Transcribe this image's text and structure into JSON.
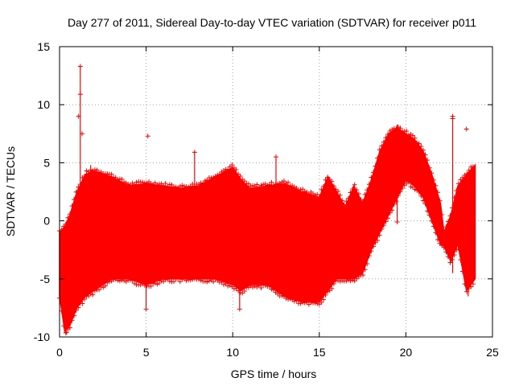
{
  "chart_data": {
    "type": "scatter",
    "title": "Day 277 of 2011, Sidereal Day-to-day VTEC variation (SDTVAR) for receiver p011",
    "xlabel": "GPS time / hours",
    "ylabel": "SDTVAR / TECUs",
    "xlim": [
      0,
      25
    ],
    "ylim": [
      -10,
      15
    ],
    "xticks": [
      0,
      5,
      10,
      15,
      20,
      25
    ],
    "yticks": [
      -10,
      -5,
      0,
      5,
      10,
      15
    ],
    "xtick_labels": [
      "0",
      "5",
      "10",
      "15",
      "20",
      "25"
    ],
    "ytick_labels": [
      "-10",
      "-5",
      "0",
      "5",
      "10",
      "15"
    ],
    "grid": true,
    "marker": "+",
    "series_color": "#ff0000",
    "envelope": [
      {
        "x": 0.0,
        "low": -6.5,
        "high": -1.0
      },
      {
        "x": 0.3,
        "low": -9.5,
        "high": -0.5
      },
      {
        "x": 0.6,
        "low": -9.0,
        "high": 0.5
      },
      {
        "x": 1.0,
        "low": -7.5,
        "high": 2.5
      },
      {
        "x": 1.5,
        "low": -6.5,
        "high": 4.0
      },
      {
        "x": 2.0,
        "low": -6.0,
        "high": 4.3
      },
      {
        "x": 3.0,
        "low": -5.0,
        "high": 3.8
      },
      {
        "x": 4.0,
        "low": -5.0,
        "high": 3.0
      },
      {
        "x": 5.0,
        "low": -5.5,
        "high": 3.2
      },
      {
        "x": 6.0,
        "low": -5.0,
        "high": 3.0
      },
      {
        "x": 7.0,
        "low": -5.0,
        "high": 2.8
      },
      {
        "x": 8.0,
        "low": -5.0,
        "high": 3.0
      },
      {
        "x": 9.0,
        "low": -5.0,
        "high": 3.8
      },
      {
        "x": 10.0,
        "low": -5.5,
        "high": 4.6
      },
      {
        "x": 10.5,
        "low": -6.0,
        "high": 3.5
      },
      {
        "x": 11.0,
        "low": -5.5,
        "high": 2.8
      },
      {
        "x": 12.0,
        "low": -5.5,
        "high": 3.0
      },
      {
        "x": 13.0,
        "low": -6.5,
        "high": 3.2
      },
      {
        "x": 14.0,
        "low": -7.0,
        "high": 2.5
      },
      {
        "x": 15.0,
        "low": -7.0,
        "high": 2.0
      },
      {
        "x": 15.5,
        "low": -6.0,
        "high": 3.8
      },
      {
        "x": 16.0,
        "low": -5.0,
        "high": 2.5
      },
      {
        "x": 16.5,
        "low": -5.0,
        "high": 1.2
      },
      {
        "x": 17.0,
        "low": -5.0,
        "high": 3.0
      },
      {
        "x": 17.5,
        "low": -4.5,
        "high": 1.5
      },
      {
        "x": 18.0,
        "low": -2.5,
        "high": 3.5
      },
      {
        "x": 18.5,
        "low": -1.0,
        "high": 6.0
      },
      {
        "x": 19.0,
        "low": 0.5,
        "high": 7.5
      },
      {
        "x": 19.5,
        "low": 2.0,
        "high": 8.0
      },
      {
        "x": 20.0,
        "low": 3.5,
        "high": 7.5
      },
      {
        "x": 20.5,
        "low": 3.0,
        "high": 7.0
      },
      {
        "x": 21.0,
        "low": 2.0,
        "high": 6.0
      },
      {
        "x": 21.5,
        "low": 0.0,
        "high": 4.0
      },
      {
        "x": 22.0,
        "low": -2.0,
        "high": 1.5
      },
      {
        "x": 22.2,
        "low": -2.2,
        "high": -1.0
      },
      {
        "x": 22.6,
        "low": -3.5,
        "high": 0.5
      },
      {
        "x": 23.0,
        "low": -2.0,
        "high": 3.0
      },
      {
        "x": 23.5,
        "low": -6.0,
        "high": 4.0
      },
      {
        "x": 24.0,
        "low": -5.0,
        "high": 4.8
      }
    ],
    "outliers": [
      {
        "x": 1.2,
        "y": 13.3
      },
      {
        "x": 1.2,
        "y": 10.9
      },
      {
        "x": 5.1,
        "y": 7.3
      },
      {
        "x": 22.7,
        "y": 9.0
      },
      {
        "x": 22.7,
        "y": 8.8
      },
      {
        "x": 23.5,
        "y": 7.9
      },
      {
        "x": 1.1,
        "y": 9.0
      },
      {
        "x": 1.3,
        "y": 7.5
      },
      {
        "x": 7.8,
        "y": 5.9
      },
      {
        "x": 12.5,
        "y": 5.5
      },
      {
        "x": 0.4,
        "y": -9.6
      },
      {
        "x": 5.0,
        "y": -7.6
      },
      {
        "x": 10.4,
        "y": -7.6
      },
      {
        "x": 19.5,
        "y": -0.1
      }
    ],
    "spikes": [
      {
        "x": 1.2,
        "low": 2.0,
        "high": 13.3
      },
      {
        "x": 22.7,
        "low": -4.5,
        "high": 9.0
      },
      {
        "x": 23.6,
        "low": -6.5,
        "high": 4.0
      },
      {
        "x": 19.5,
        "low": 0.0,
        "high": 8.3
      },
      {
        "x": 10.4,
        "low": -7.5,
        "high": -4.0
      },
      {
        "x": 5.0,
        "low": -7.5,
        "high": -5.0
      },
      {
        "x": 7.8,
        "low": 3.0,
        "high": 6.0
      },
      {
        "x": 12.5,
        "low": 3.0,
        "high": 5.5
      },
      {
        "x": 1.8,
        "low": 4.0,
        "high": 4.8
      }
    ]
  }
}
